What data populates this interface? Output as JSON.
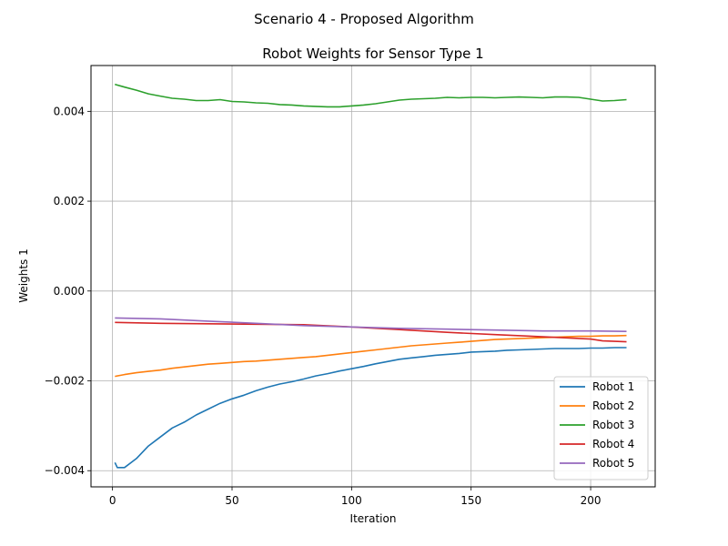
{
  "chart_data": {
    "type": "line",
    "suptitle": "Scenario 4 - Proposed Algorithm",
    "title": "Robot Weights for Sensor Type 1",
    "xlabel": "Iteration",
    "ylabel": "Weights 1",
    "xlim": [
      -9,
      227
    ],
    "ylim": [
      -0.00436,
      0.00502
    ],
    "xticks": [
      0,
      50,
      100,
      150,
      200
    ],
    "xtick_labels": [
      "0",
      "50",
      "100",
      "150",
      "200"
    ],
    "yticks": [
      -0.004,
      -0.002,
      0.0,
      0.002,
      0.004
    ],
    "ytick_labels": [
      "−0.004",
      "−0.002",
      "0.000",
      "0.002",
      "0.004"
    ],
    "grid": true,
    "legend_position": "lower-right",
    "series": [
      {
        "name": "Robot 1",
        "color": "#1f77b4",
        "points": [
          [
            1,
            -0.00382
          ],
          [
            2,
            -0.00393
          ],
          [
            5,
            -0.00393
          ],
          [
            10,
            -0.00373
          ],
          [
            15,
            -0.00345
          ],
          [
            20,
            -0.00325
          ],
          [
            25,
            -0.00305
          ],
          [
            30,
            -0.00292
          ],
          [
            35,
            -0.00276
          ],
          [
            40,
            -0.00263
          ],
          [
            45,
            -0.0025
          ],
          [
            50,
            -0.0024
          ],
          [
            55,
            -0.00232
          ],
          [
            60,
            -0.00222
          ],
          [
            65,
            -0.00214
          ],
          [
            70,
            -0.00207
          ],
          [
            75,
            -0.00202
          ],
          [
            80,
            -0.00196
          ],
          [
            85,
            -0.00189
          ],
          [
            90,
            -0.00184
          ],
          [
            95,
            -0.00178
          ],
          [
            100,
            -0.00173
          ],
          [
            105,
            -0.00168
          ],
          [
            110,
            -0.00162
          ],
          [
            115,
            -0.00157
          ],
          [
            120,
            -0.00152
          ],
          [
            125,
            -0.00149
          ],
          [
            130,
            -0.00146
          ],
          [
            135,
            -0.00143
          ],
          [
            140,
            -0.00141
          ],
          [
            145,
            -0.00139
          ],
          [
            150,
            -0.00136
          ],
          [
            155,
            -0.00135
          ],
          [
            160,
            -0.00134
          ],
          [
            165,
            -0.00132
          ],
          [
            170,
            -0.00131
          ],
          [
            175,
            -0.0013
          ],
          [
            180,
            -0.00129
          ],
          [
            185,
            -0.00128
          ],
          [
            190,
            -0.00128
          ],
          [
            195,
            -0.00128
          ],
          [
            200,
            -0.00127
          ],
          [
            205,
            -0.00127
          ],
          [
            210,
            -0.00126
          ],
          [
            215,
            -0.00126
          ]
        ]
      },
      {
        "name": "Robot 2",
        "color": "#ff7f0e",
        "points": [
          [
            1,
            -0.0019
          ],
          [
            5,
            -0.00186
          ],
          [
            10,
            -0.00182
          ],
          [
            15,
            -0.00179
          ],
          [
            20,
            -0.00176
          ],
          [
            25,
            -0.00172
          ],
          [
            30,
            -0.00169
          ],
          [
            35,
            -0.00166
          ],
          [
            40,
            -0.00163
          ],
          [
            45,
            -0.00161
          ],
          [
            50,
            -0.00159
          ],
          [
            55,
            -0.00157
          ],
          [
            60,
            -0.00156
          ],
          [
            65,
            -0.00154
          ],
          [
            70,
            -0.00152
          ],
          [
            75,
            -0.0015
          ],
          [
            80,
            -0.00148
          ],
          [
            85,
            -0.00146
          ],
          [
            90,
            -0.00143
          ],
          [
            95,
            -0.0014
          ],
          [
            100,
            -0.00137
          ],
          [
            105,
            -0.00134
          ],
          [
            110,
            -0.00131
          ],
          [
            115,
            -0.00128
          ],
          [
            120,
            -0.00125
          ],
          [
            125,
            -0.00122
          ],
          [
            130,
            -0.0012
          ],
          [
            135,
            -0.00118
          ],
          [
            140,
            -0.00116
          ],
          [
            145,
            -0.00114
          ],
          [
            150,
            -0.00112
          ],
          [
            155,
            -0.0011
          ],
          [
            160,
            -0.00108
          ],
          [
            165,
            -0.00107
          ],
          [
            170,
            -0.00106
          ],
          [
            175,
            -0.00105
          ],
          [
            180,
            -0.00104
          ],
          [
            185,
            -0.00103
          ],
          [
            190,
            -0.00102
          ],
          [
            195,
            -0.00101
          ],
          [
            200,
            -0.00101
          ],
          [
            205,
            -0.001
          ],
          [
            210,
            -0.001
          ],
          [
            215,
            -0.00099
          ]
        ]
      },
      {
        "name": "Robot 3",
        "color": "#2ca02c",
        "points": [
          [
            1,
            0.0046
          ],
          [
            5,
            0.00454
          ],
          [
            10,
            0.00447
          ],
          [
            15,
            0.00439
          ],
          [
            20,
            0.00434
          ],
          [
            25,
            0.00429
          ],
          [
            30,
            0.00427
          ],
          [
            35,
            0.00424
          ],
          [
            40,
            0.00424
          ],
          [
            45,
            0.00426
          ],
          [
            50,
            0.00422
          ],
          [
            55,
            0.00421
          ],
          [
            60,
            0.00419
          ],
          [
            65,
            0.00418
          ],
          [
            70,
            0.00415
          ],
          [
            75,
            0.00414
          ],
          [
            80,
            0.00412
          ],
          [
            85,
            0.00411
          ],
          [
            90,
            0.0041
          ],
          [
            95,
            0.0041
          ],
          [
            100,
            0.00412
          ],
          [
            105,
            0.00414
          ],
          [
            110,
            0.00417
          ],
          [
            115,
            0.00421
          ],
          [
            120,
            0.00425
          ],
          [
            125,
            0.00427
          ],
          [
            130,
            0.00428
          ],
          [
            135,
            0.00429
          ],
          [
            140,
            0.00431
          ],
          [
            145,
            0.0043
          ],
          [
            150,
            0.00431
          ],
          [
            155,
            0.00431
          ],
          [
            160,
            0.0043
          ],
          [
            165,
            0.00431
          ],
          [
            170,
            0.00432
          ],
          [
            175,
            0.00431
          ],
          [
            180,
            0.0043
          ],
          [
            185,
            0.00432
          ],
          [
            190,
            0.00432
          ],
          [
            195,
            0.00431
          ],
          [
            200,
            0.00427
          ],
          [
            205,
            0.00423
          ],
          [
            210,
            0.00424
          ],
          [
            215,
            0.00426
          ]
        ]
      },
      {
        "name": "Robot 4",
        "color": "#d62728",
        "points": [
          [
            1,
            -0.0007
          ],
          [
            20,
            -0.00072
          ],
          [
            40,
            -0.00073
          ],
          [
            60,
            -0.00074
          ],
          [
            80,
            -0.00075
          ],
          [
            100,
            -0.0008
          ],
          [
            120,
            -0.00086
          ],
          [
            140,
            -0.00092
          ],
          [
            160,
            -0.00097
          ],
          [
            180,
            -0.00102
          ],
          [
            200,
            -0.00107
          ],
          [
            205,
            -0.00111
          ],
          [
            210,
            -0.00112
          ],
          [
            215,
            -0.00113
          ]
        ]
      },
      {
        "name": "Robot 5",
        "color": "#9467bd",
        "points": [
          [
            1,
            -0.0006
          ],
          [
            20,
            -0.00062
          ],
          [
            40,
            -0.00067
          ],
          [
            60,
            -0.00072
          ],
          [
            80,
            -0.00077
          ],
          [
            100,
            -0.0008
          ],
          [
            120,
            -0.00083
          ],
          [
            140,
            -0.00085
          ],
          [
            160,
            -0.00087
          ],
          [
            180,
            -0.00089
          ],
          [
            200,
            -0.00089
          ],
          [
            215,
            -0.0009
          ]
        ]
      }
    ]
  }
}
